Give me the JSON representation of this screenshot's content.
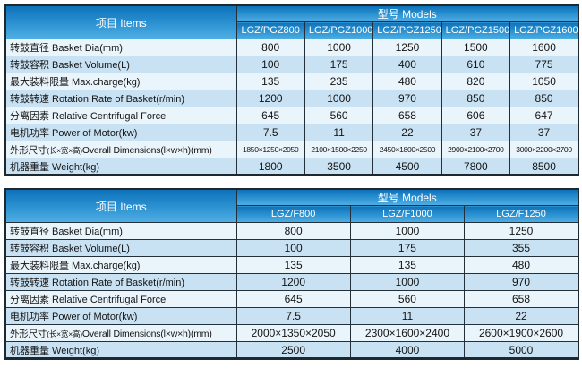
{
  "colors": {
    "header_gradient_top": "#0d72b9",
    "header_gradient_bottom": "#4faee2",
    "header_text": "#ffffff",
    "row_light": "#eaf4fb",
    "row_shaded": "#c9e2f3",
    "border": "#233039",
    "body_text": "#141414"
  },
  "tables": [
    {
      "items_header": "项目 Items",
      "models_header": "型号 Models",
      "models": [
        "LGZ/PGZ800",
        "LGZ/PGZ1000",
        "LGZ/PGZ1250",
        "LGZ/PGZ1500",
        "LGZ/PGZ1600"
      ],
      "rows": [
        {
          "label": "转鼓直径 Basket Dia(mm)",
          "values": [
            "800",
            "1000",
            "1250",
            "1500",
            "1600"
          ]
        },
        {
          "label": "转鼓容积 Basket Volume(L)",
          "values": [
            "100",
            "175",
            "400",
            "610",
            "775"
          ]
        },
        {
          "label": "最大装料限量 Max.charge(kg)",
          "values": [
            "135",
            "235",
            "480",
            "820",
            "1050"
          ]
        },
        {
          "label": "转鼓转速 Rotation Rate of Basket(r/min)",
          "values": [
            "1200",
            "1000",
            "970",
            "850",
            "850"
          ]
        },
        {
          "label": "分离因素 Relative Centrifugal Force",
          "values": [
            "645",
            "560",
            "658",
            "606",
            "647"
          ]
        },
        {
          "label": "电机功率 Power of Motor(kw)",
          "values": [
            "7.5",
            "11",
            "22",
            "37",
            "37"
          ]
        },
        {
          "label_main": "外形尺寸",
          "label_small": "(长×宽×高)",
          "label_rest": "Overall Dimensions(l×w×h)(mm)",
          "values": [
            "1850×1250×2050",
            "2100×1500×2250",
            "2450×1800×2500",
            "2900×2100×2700",
            "3000×2200×2700"
          ]
        },
        {
          "label": "机器重量 Weight(kg)",
          "values": [
            "1800",
            "3500",
            "4500",
            "7800",
            "8500"
          ]
        }
      ]
    },
    {
      "items_header": "项目 Items",
      "models_header": "型号 Models",
      "models": [
        "LGZ/F800",
        "LGZ/F1000",
        "LGZ/F1250"
      ],
      "rows": [
        {
          "label": "转鼓直径 Basket Dia(mm)",
          "values": [
            "800",
            "1000",
            "1250"
          ]
        },
        {
          "label": "转鼓容积 Basket Volume(L)",
          "values": [
            "100",
            "175",
            "355"
          ]
        },
        {
          "label": "最大装料限量 Max.charge(kg)",
          "values": [
            "135",
            "135",
            "480"
          ]
        },
        {
          "label": "转鼓转速 Rotation Rate of Basket(r/min)",
          "values": [
            "1200",
            "1000",
            "970"
          ]
        },
        {
          "label": "分离因素 Relative Centrifugal Force",
          "values": [
            "645",
            "560",
            "658"
          ]
        },
        {
          "label": "电机功率 Power of Motor(kw)",
          "values": [
            "7.5",
            "11",
            "22"
          ]
        },
        {
          "label_main": "外形尺寸",
          "label_small": "(长×宽×高)",
          "label_rest": "Overall Dimensions(l×w×h)(mm)",
          "values": [
            "2000×1350×2050",
            "2300×1600×2400",
            "2600×1900×2600"
          ]
        },
        {
          "label": "机器重量 Weight(kg)",
          "values": [
            "2500",
            "4000",
            "5000"
          ]
        }
      ]
    }
  ]
}
